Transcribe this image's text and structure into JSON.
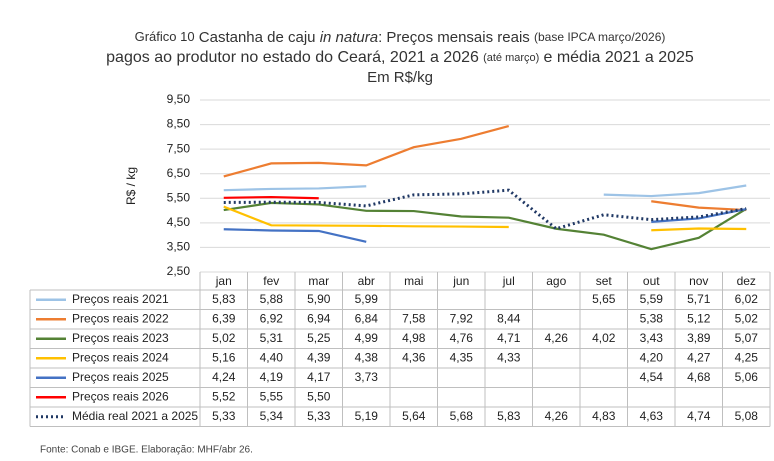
{
  "chart_data": {
    "type": "line",
    "title_line1": [
      "Gráfico 10",
      "Castanha de caju",
      "in natura",
      ": Preços mensais reais",
      "(base IPCA março/2026)"
    ],
    "title_line2": [
      "pagos ao produtor no estado do Ceará, 2021 a 2026",
      "(até março)",
      "e média 2021 a 2025"
    ],
    "subtitle": "Em R$/kg",
    "y_label": "R$ / kg",
    "categories": [
      "jan",
      "fev",
      "mar",
      "abr",
      "mai",
      "jun",
      "jul",
      "ago",
      "set",
      "out",
      "nov",
      "dez"
    ],
    "ylim": [
      2.5,
      9.5
    ],
    "yticks": [
      {
        "value": 2.5,
        "label": "2,50"
      },
      {
        "value": 3.5,
        "label": "3,50"
      },
      {
        "value": 4.5,
        "label": "4,50"
      },
      {
        "value": 5.5,
        "label": "5,50"
      },
      {
        "value": 6.5,
        "label": "6,50"
      },
      {
        "value": 7.5,
        "label": "7,50"
      },
      {
        "value": 8.5,
        "label": "8,50"
      },
      {
        "value": 9.5,
        "label": "9,50"
      }
    ],
    "series": [
      {
        "name": "Preços reais 2021",
        "color": "#9dc3e6",
        "dash": false,
        "values": [
          5.83,
          5.88,
          5.9,
          5.99,
          null,
          null,
          null,
          null,
          5.65,
          5.59,
          5.71,
          6.02
        ],
        "value_labels": [
          "5,83",
          "5,88",
          "5,90",
          "5,99",
          null,
          null,
          null,
          null,
          "5,65",
          "5,59",
          "5,71",
          "6,02"
        ]
      },
      {
        "name": "Preços reais 2022",
        "color": "#ed7d31",
        "dash": false,
        "values": [
          6.39,
          6.92,
          6.94,
          6.84,
          7.58,
          7.92,
          8.44,
          null,
          null,
          5.38,
          5.12,
          5.02
        ],
        "value_labels": [
          "6,39",
          "6,92",
          "6,94",
          "6,84",
          "7,58",
          "7,92",
          "8,44",
          null,
          null,
          "5,38",
          "5,12",
          "5,02"
        ]
      },
      {
        "name": "Preços reais 2023",
        "color": "#548235",
        "dash": false,
        "values": [
          5.02,
          5.31,
          5.25,
          4.99,
          4.98,
          4.76,
          4.71,
          4.26,
          4.02,
          3.43,
          3.89,
          5.07
        ],
        "value_labels": [
          "5,02",
          "5,31",
          "5,25",
          "4,99",
          "4,98",
          "4,76",
          "4,71",
          "4,26",
          "4,02",
          "3,43",
          "3,89",
          "5,07"
        ]
      },
      {
        "name": "Preços reais 2024",
        "color": "#ffc000",
        "dash": false,
        "values": [
          5.16,
          4.4,
          4.39,
          4.38,
          4.36,
          4.35,
          4.33,
          null,
          null,
          4.2,
          4.27,
          4.25
        ],
        "value_labels": [
          "5,16",
          "4,40",
          "4,39",
          "4,38",
          "4,36",
          "4,35",
          "4,33",
          null,
          null,
          "4,20",
          "4,27",
          "4,25"
        ]
      },
      {
        "name": "Preços reais 2025",
        "color": "#4472c4",
        "dash": false,
        "values": [
          4.24,
          4.19,
          4.17,
          3.73,
          null,
          null,
          null,
          null,
          null,
          4.54,
          4.68,
          5.06
        ],
        "value_labels": [
          "4,24",
          "4,19",
          "4,17",
          "3,73",
          null,
          null,
          null,
          null,
          null,
          "4,54",
          "4,68",
          "5,06"
        ]
      },
      {
        "name": "Preços reais 2026",
        "color": "#ff0000",
        "dash": false,
        "values": [
          5.52,
          5.55,
          5.5,
          null,
          null,
          null,
          null,
          null,
          null,
          null,
          null,
          null
        ],
        "value_labels": [
          "5,52",
          "5,55",
          "5,50",
          null,
          null,
          null,
          null,
          null,
          null,
          null,
          null,
          null
        ]
      },
      {
        "name": "Média real 2021 a 2025",
        "color": "#203864",
        "dash": true,
        "values": [
          5.33,
          5.34,
          5.33,
          5.19,
          5.64,
          5.68,
          5.83,
          4.26,
          4.83,
          4.63,
          4.74,
          5.08
        ],
        "value_labels": [
          "5,33",
          "5,34",
          "5,33",
          "5,19",
          "5,64",
          "5,68",
          "5,83",
          "4,26",
          "4,83",
          "4,63",
          "4,74",
          "5,08"
        ]
      }
    ],
    "grid": true,
    "source": "Fonte: Conab e IBGE. Elaboração: MHF/abr 26."
  }
}
